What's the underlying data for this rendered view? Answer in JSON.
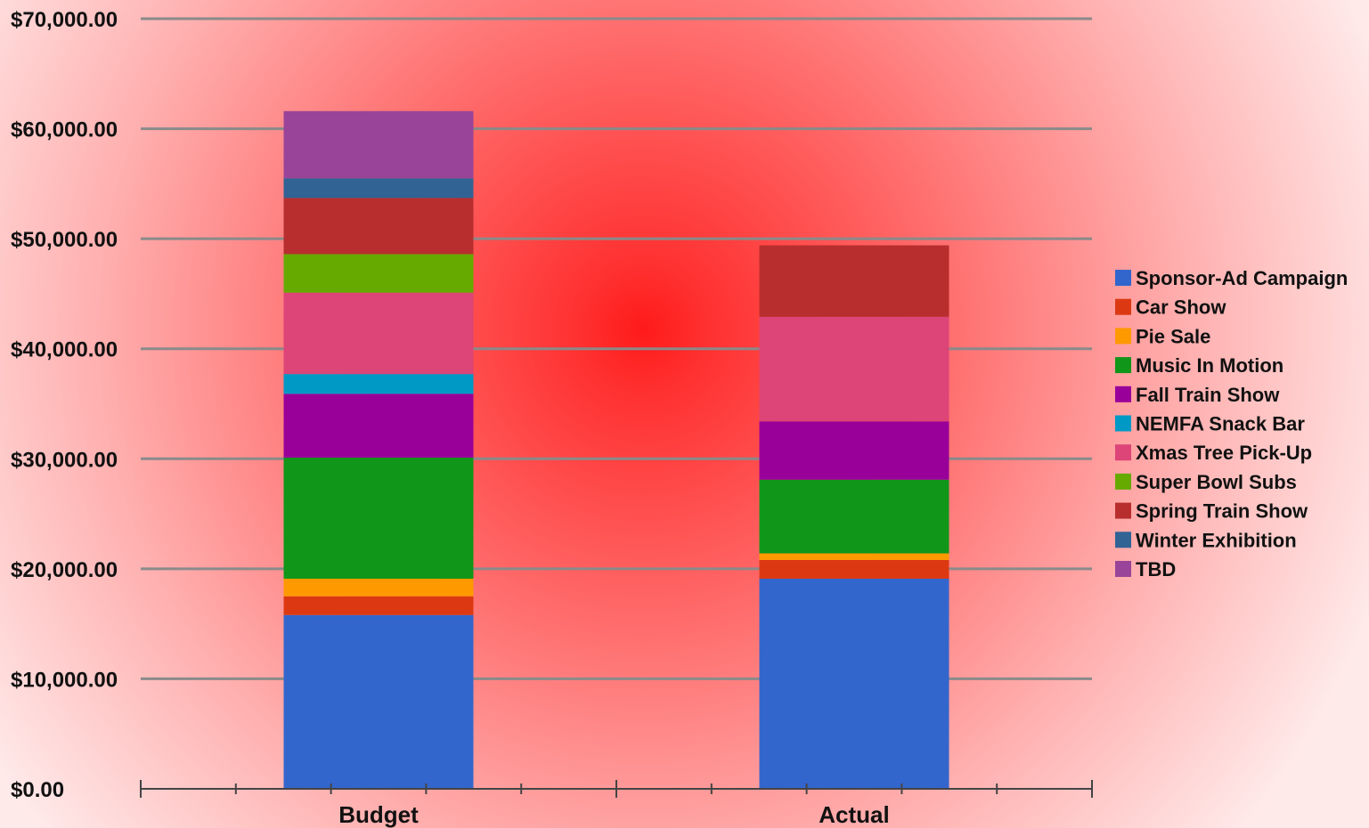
{
  "chart_data": {
    "type": "bar",
    "stacked": true,
    "categories": [
      "Budget",
      "Actual"
    ],
    "series": [
      {
        "name": "Sponsor-Ad Campaign",
        "color": "#3366cc",
        "values": [
          15800,
          19100
        ]
      },
      {
        "name": "Car Show",
        "color": "#dc3912",
        "values": [
          1700,
          1700
        ]
      },
      {
        "name": "Pie Sale",
        "color": "#ff9900",
        "values": [
          1600,
          600
        ]
      },
      {
        "name": "Music In Motion",
        "color": "#109618",
        "values": [
          11000,
          6700
        ]
      },
      {
        "name": "Fall Train Show",
        "color": "#990099",
        "values": [
          5800,
          5300
        ]
      },
      {
        "name": "NEMFA Snack Bar",
        "color": "#0099c6",
        "values": [
          1800,
          0
        ]
      },
      {
        "name": "Xmas Tree Pick-Up",
        "color": "#dd4477",
        "values": [
          7400,
          9500
        ]
      },
      {
        "name": "Super Bowl Subs",
        "color": "#66aa00",
        "values": [
          3500,
          0
        ]
      },
      {
        "name": "Spring Train Show",
        "color": "#b82e2e",
        "values": [
          5100,
          6500
        ]
      },
      {
        "name": "Winter Exhibition",
        "color": "#316395",
        "values": [
          1800,
          0
        ]
      },
      {
        "name": "TBD",
        "color": "#994499",
        "values": [
          6100,
          0
        ]
      }
    ],
    "ylim": [
      0,
      70000
    ],
    "yticks": [
      "$0.00",
      "$10,000.00",
      "$20,000.00",
      "$30,000.00",
      "$40,000.00",
      "$50,000.00",
      "$60,000.00",
      "$70,000.00"
    ],
    "grid": true,
    "legend": "right",
    "title": "",
    "xlabel": "",
    "ylabel": ""
  }
}
